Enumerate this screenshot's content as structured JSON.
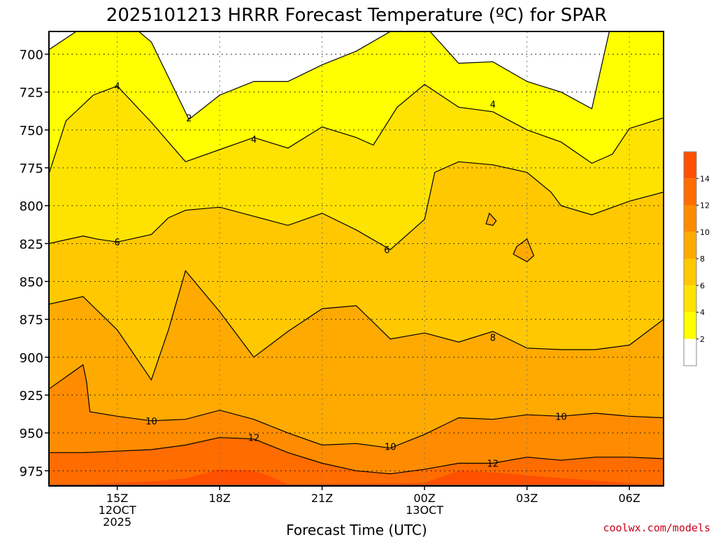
{
  "chart_data": {
    "type": "contour",
    "title": "2025101213 HRRR Forecast Temperature (ºC) for SPAR",
    "xlabel": "Forecast Time (UTC)",
    "ylabel": "",
    "credit": "coolwx.com/models",
    "x_range": [
      13,
      31
    ],
    "y_range": [
      685,
      985
    ],
    "y_ticks": [
      700,
      725,
      750,
      775,
      800,
      825,
      850,
      875,
      900,
      925,
      950,
      975
    ],
    "x_ticks": [
      {
        "x": 15,
        "lines": [
          "15Z",
          "12OCT",
          "2025"
        ]
      },
      {
        "x": 18,
        "lines": [
          "18Z"
        ]
      },
      {
        "x": 21,
        "lines": [
          "21Z"
        ]
      },
      {
        "x": 24,
        "lines": [
          "00Z",
          "13OCT"
        ]
      },
      {
        "x": 27,
        "lines": [
          "03Z"
        ]
      },
      {
        "x": 30,
        "lines": [
          "06Z"
        ]
      }
    ],
    "colorbar": {
      "levels": [
        2,
        4,
        6,
        8,
        10,
        12,
        14
      ],
      "bins": [
        {
          "from": 0,
          "to": 2,
          "color": "#ffffff"
        },
        {
          "from": 2,
          "to": 4,
          "color": "#ffff00"
        },
        {
          "from": 4,
          "to": 6,
          "color": "#ffe300"
        },
        {
          "from": 6,
          "to": 8,
          "color": "#ffc800"
        },
        {
          "from": 8,
          "to": 10,
          "color": "#ffaa00"
        },
        {
          "from": 10,
          "to": 12,
          "color": "#ff8c00"
        },
        {
          "from": 12,
          "to": 14,
          "color": "#ff6c00"
        },
        {
          "from": 14,
          "to": 16,
          "color": "#ff5000"
        }
      ]
    },
    "ground_color": "#a0522d",
    "contours": [
      {
        "level": 2,
        "fill": "#ffff00",
        "points": [
          [
            13,
            697
          ],
          [
            14,
            682
          ],
          [
            15,
            673
          ],
          [
            16,
            692
          ],
          [
            17.1,
            743
          ],
          [
            18,
            727
          ],
          [
            19,
            718
          ],
          [
            20,
            718
          ],
          [
            21,
            707
          ],
          [
            22,
            698
          ],
          [
            23,
            685
          ],
          [
            24,
            681
          ],
          [
            25,
            706
          ],
          [
            26,
            705
          ],
          [
            27,
            718
          ],
          [
            28,
            725
          ],
          [
            28.9,
            736
          ],
          [
            29.5,
            676
          ],
          [
            31,
            676
          ]
        ]
      },
      {
        "level": 4,
        "fill": "#ffe300",
        "points": [
          [
            13,
            779
          ],
          [
            13.5,
            744
          ],
          [
            14.3,
            727
          ],
          [
            15,
            721
          ],
          [
            16,
            745
          ],
          [
            17,
            771
          ],
          [
            18,
            763
          ],
          [
            19,
            755
          ],
          [
            20,
            762
          ],
          [
            21,
            748
          ],
          [
            22,
            755
          ],
          [
            22.5,
            760
          ],
          [
            23.2,
            735
          ],
          [
            24,
            720
          ],
          [
            25,
            735
          ],
          [
            26,
            738
          ],
          [
            27,
            750
          ],
          [
            28,
            758
          ],
          [
            28.9,
            772
          ],
          [
            29.5,
            766
          ],
          [
            30,
            749
          ],
          [
            31,
            742
          ]
        ]
      },
      {
        "level": 6,
        "fill": "#ffc800",
        "points": [
          [
            13,
            825
          ],
          [
            14,
            820
          ],
          [
            14.4,
            822
          ],
          [
            15,
            824
          ],
          [
            16,
            819
          ],
          [
            16.5,
            808
          ],
          [
            17,
            803
          ],
          [
            18,
            801
          ],
          [
            19,
            807
          ],
          [
            20,
            813
          ],
          [
            21,
            805
          ],
          [
            22,
            816
          ],
          [
            23,
            829
          ],
          [
            24,
            809
          ],
          [
            24.3,
            778
          ],
          [
            25,
            771
          ],
          [
            26,
            773
          ],
          [
            27,
            778
          ],
          [
            27.7,
            791
          ],
          [
            28,
            800
          ],
          [
            28.9,
            806
          ],
          [
            30,
            797
          ],
          [
            31,
            791
          ]
        ]
      },
      {
        "level": 8,
        "fill": "#ffaa00",
        "points": [
          [
            13,
            865
          ],
          [
            14,
            860
          ],
          [
            15,
            882
          ],
          [
            16,
            915
          ],
          [
            16.5,
            882
          ],
          [
            17,
            843
          ],
          [
            18,
            870
          ],
          [
            19,
            900
          ],
          [
            20,
            883
          ],
          [
            21,
            868
          ],
          [
            22,
            866
          ],
          [
            23,
            888
          ],
          [
            24,
            884
          ],
          [
            25,
            890
          ],
          [
            26,
            883
          ],
          [
            27,
            894
          ],
          [
            28,
            895
          ],
          [
            29,
            895
          ],
          [
            30,
            892
          ],
          [
            31,
            875
          ]
        ]
      },
      {
        "level": 10,
        "fill": "#ff8c00",
        "points": [
          [
            13,
            921
          ],
          [
            14,
            905
          ],
          [
            14.1,
            916
          ],
          [
            14.2,
            936
          ],
          [
            15,
            939
          ],
          [
            16,
            942
          ],
          [
            17,
            941
          ],
          [
            18,
            935
          ],
          [
            19,
            941
          ],
          [
            20,
            950
          ],
          [
            21,
            958
          ],
          [
            22,
            957
          ],
          [
            23,
            960
          ],
          [
            24,
            951
          ],
          [
            25,
            940
          ],
          [
            26,
            941
          ],
          [
            27,
            938
          ],
          [
            28,
            939
          ],
          [
            29,
            937
          ],
          [
            30,
            939
          ],
          [
            31,
            940
          ]
        ]
      },
      {
        "level": 12,
        "fill": "#ff6c00",
        "points": [
          [
            13,
            963
          ],
          [
            14,
            963
          ],
          [
            15,
            962
          ],
          [
            16,
            961
          ],
          [
            17,
            958
          ],
          [
            18,
            953
          ],
          [
            19,
            954
          ],
          [
            20,
            963
          ],
          [
            21,
            970
          ],
          [
            22,
            975
          ],
          [
            23,
            977
          ],
          [
            24,
            974
          ],
          [
            25,
            970
          ],
          [
            26,
            970
          ],
          [
            27,
            966
          ],
          [
            28,
            968
          ],
          [
            29,
            966
          ],
          [
            30,
            966
          ],
          [
            31,
            967
          ]
        ]
      },
      {
        "level": 14,
        "fill": "#ff5000",
        "points": [
          [
            13,
            985
          ],
          [
            16,
            982
          ],
          [
            17,
            980
          ],
          [
            18,
            974
          ],
          [
            19,
            975
          ],
          [
            19.4,
            978
          ],
          [
            20,
            984
          ],
          [
            24,
            983
          ],
          [
            25,
            975
          ],
          [
            26,
            976
          ],
          [
            27,
            978
          ],
          [
            31,
            985
          ]
        ]
      }
    ],
    "islands": [
      {
        "level": 6,
        "fill": "#ffaa00",
        "points": [
          [
            25.9,
            805
          ],
          [
            26.1,
            810
          ],
          [
            26,
            813
          ],
          [
            25.8,
            812
          ],
          [
            25.9,
            805
          ]
        ]
      },
      {
        "level": 6,
        "fill": "#ffaa00",
        "points": [
          [
            27,
            822
          ],
          [
            27.2,
            833
          ],
          [
            27,
            837
          ],
          [
            26.6,
            832
          ],
          [
            26.7,
            827
          ],
          [
            27,
            822
          ]
        ]
      }
    ],
    "contour_labels": [
      {
        "text": "2",
        "x": 17.1,
        "y": 742
      },
      {
        "text": "4",
        "x": 15,
        "y": 721
      },
      {
        "text": "4",
        "x": 19,
        "y": 756
      },
      {
        "text": "4",
        "x": 26.0,
        "y": 733
      },
      {
        "text": "6",
        "x": 15,
        "y": 824
      },
      {
        "text": "6",
        "x": 22.9,
        "y": 829
      },
      {
        "text": "8",
        "x": 26.0,
        "y": 887
      },
      {
        "text": "10",
        "x": 16,
        "y": 942
      },
      {
        "text": "10",
        "x": 23.0,
        "y": 959
      },
      {
        "text": "10",
        "x": 28.0,
        "y": 939
      },
      {
        "text": "12",
        "x": 19.0,
        "y": 953
      },
      {
        "text": "12",
        "x": 26.0,
        "y": 970
      }
    ]
  }
}
